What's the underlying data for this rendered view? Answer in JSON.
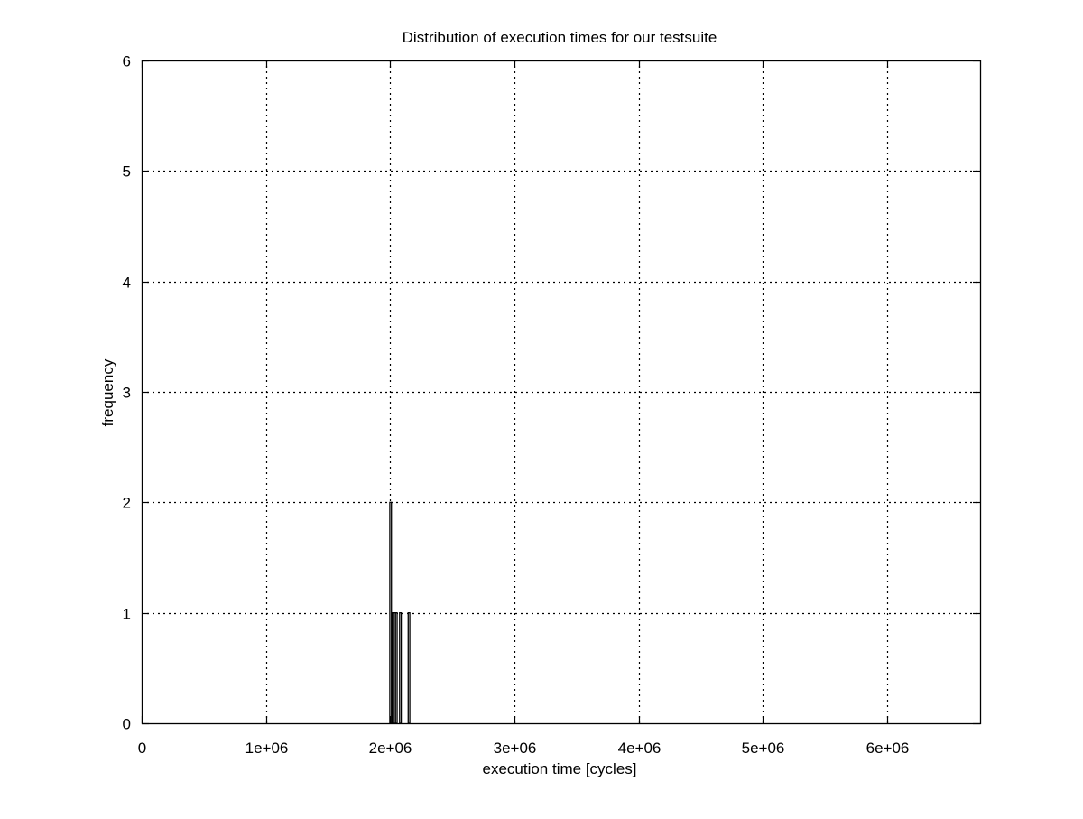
{
  "chart_data": {
    "type": "bar",
    "title": "Distribution of execution times for our testsuite",
    "xlabel": "execution time [cycles]",
    "ylabel": "frequency",
    "xlim": [
      0,
      6750000
    ],
    "ylim": [
      0,
      6
    ],
    "grid": true,
    "legend": "none",
    "x_ticks": [
      {
        "value": 0,
        "label": "0"
      },
      {
        "value": 1000000,
        "label": "1e+06"
      },
      {
        "value": 2000000,
        "label": "2e+06"
      },
      {
        "value": 3000000,
        "label": "3e+06"
      },
      {
        "value": 4000000,
        "label": "4e+06"
      },
      {
        "value": 5000000,
        "label": "5e+06"
      },
      {
        "value": 6000000,
        "label": "6e+06"
      }
    ],
    "y_ticks": [
      {
        "value": 0,
        "label": "0"
      },
      {
        "value": 1,
        "label": "1"
      },
      {
        "value": 2,
        "label": "2"
      },
      {
        "value": 3,
        "label": "3"
      },
      {
        "value": 4,
        "label": "4"
      },
      {
        "value": 5,
        "label": "5"
      },
      {
        "value": 6,
        "label": "6"
      }
    ],
    "bin_width": 13000,
    "bars": [
      {
        "x": 2004000,
        "value": 2
      },
      {
        "x": 2022000,
        "value": 1
      },
      {
        "x": 2035000,
        "value": 1
      },
      {
        "x": 2050000,
        "value": 1
      },
      {
        "x": 2083000,
        "value": 1
      },
      {
        "x": 2152000,
        "value": 1
      }
    ],
    "colors": {
      "bar_stroke": "#000000",
      "bar_fill": "#ffffff",
      "grid": "#000000",
      "axes": "#000000"
    }
  }
}
